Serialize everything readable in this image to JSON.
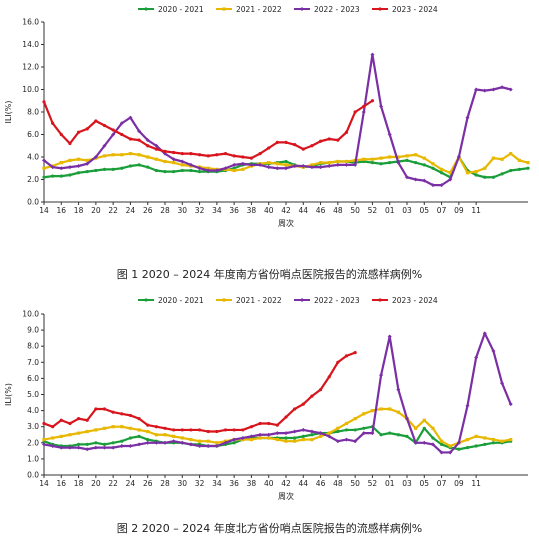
{
  "charts": [
    {
      "caption": "图 1   2020 – 2024 年度南方省份哨点医院报告的流感样病例%"
    },
    {
      "caption": "图 2   2020 – 2024 年度北方省份哨点医院报告的流感样病例%"
    }
  ],
  "chart_data": [
    {
      "type": "line",
      "xlabel": "周次",
      "ylabel": "ILI(%)",
      "ylim": [
        0,
        16
      ],
      "yticks": [
        "0.0",
        "2.0",
        "4.0",
        "6.0",
        "8.0",
        "10.0",
        "12.0",
        "14.0",
        "16.0"
      ],
      "xticks": [
        "14",
        "16",
        "18",
        "20",
        "22",
        "24",
        "26",
        "28",
        "30",
        "32",
        "34",
        "36",
        "38",
        "40",
        "42",
        "44",
        "46",
        "48",
        "50",
        "52",
        "01",
        "03",
        "05",
        "07",
        "09",
        "11"
      ],
      "legend_position": "top",
      "grid": false,
      "series": [
        {
          "name": "2020 - 2021",
          "color": "#1a9e3a",
          "marker": "circle",
          "values": [
            2.2,
            2.3,
            2.3,
            2.4,
            2.6,
            2.7,
            2.8,
            2.9,
            2.9,
            3.0,
            3.2,
            3.3,
            3.1,
            2.8,
            2.7,
            2.7,
            2.8,
            2.8,
            2.7,
            2.7,
            2.7,
            2.8,
            3.0,
            3.3,
            3.4,
            3.4,
            3.4,
            3.5,
            3.6,
            3.3,
            3.1,
            3.2,
            3.4,
            3.5,
            3.6,
            3.6,
            3.5,
            3.6,
            3.5,
            3.4,
            3.5,
            3.6,
            3.7,
            3.5,
            3.3,
            3.0,
            2.6,
            2.2,
            4.0,
            2.8,
            2.4,
            2.2,
            2.2,
            2.5,
            2.8,
            2.9,
            3.0
          ]
        },
        {
          "name": "2021 - 2022",
          "color": "#e8b800",
          "marker": "square",
          "values": [
            3.0,
            3.2,
            3.5,
            3.7,
            3.8,
            3.7,
            3.9,
            4.1,
            4.2,
            4.2,
            4.3,
            4.2,
            4.0,
            3.8,
            3.6,
            3.5,
            3.3,
            3.2,
            3.1,
            3.0,
            2.9,
            2.9,
            2.8,
            2.9,
            3.2,
            3.4,
            3.5,
            3.4,
            3.3,
            3.2,
            3.1,
            3.3,
            3.5,
            3.5,
            3.6,
            3.6,
            3.7,
            3.8,
            3.8,
            3.9,
            4.0,
            4.0,
            4.1,
            4.2,
            3.9,
            3.4,
            2.9,
            2.6,
            4.0,
            2.6,
            2.7,
            3.0,
            3.9,
            3.8,
            4.3,
            3.7,
            3.5
          ]
        },
        {
          "name": "2022 - 2023",
          "color": "#7b2fa5",
          "marker": "diamond",
          "values": [
            3.7,
            3.1,
            3.0,
            3.1,
            3.2,
            3.4,
            4.0,
            5.0,
            6.0,
            7.0,
            7.5,
            6.3,
            5.5,
            5.0,
            4.3,
            3.8,
            3.6,
            3.3,
            3.0,
            2.8,
            2.8,
            3.0,
            3.3,
            3.4,
            3.3,
            3.3,
            3.1,
            3.0,
            3.0,
            3.2,
            3.2,
            3.1,
            3.1,
            3.2,
            3.3,
            3.3,
            3.3,
            8.0,
            13.1,
            8.5,
            6.0,
            3.5,
            2.2,
            2.0,
            1.9,
            1.5,
            1.5,
            2.0,
            4.0,
            7.5,
            10.0,
            9.9,
            10.0,
            10.2,
            10.0
          ]
        },
        {
          "name": "2023 - 2024",
          "color": "#d8141c",
          "marker": "circle",
          "values": [
            8.9,
            7.0,
            6.0,
            5.2,
            6.2,
            6.5,
            7.2,
            6.8,
            6.4,
            6.0,
            5.6,
            5.5,
            5.0,
            4.7,
            4.5,
            4.4,
            4.3,
            4.3,
            4.2,
            4.1,
            4.2,
            4.3,
            4.1,
            4.0,
            3.9,
            4.3,
            4.8,
            5.3,
            5.3,
            5.1,
            4.7,
            5.0,
            5.4,
            5.6,
            5.5,
            6.2,
            8.0,
            8.5,
            9.0
          ]
        }
      ]
    },
    {
      "type": "line",
      "xlabel": "周次",
      "ylabel": "ILI(%)",
      "ylim": [
        0,
        10
      ],
      "yticks": [
        "0.0",
        "1.0",
        "2.0",
        "3.0",
        "4.0",
        "5.0",
        "6.0",
        "7.0",
        "8.0",
        "9.0",
        "10.0"
      ],
      "xticks": [
        "14",
        "16",
        "18",
        "20",
        "22",
        "24",
        "26",
        "28",
        "30",
        "32",
        "34",
        "36",
        "38",
        "40",
        "42",
        "44",
        "46",
        "48",
        "50",
        "52",
        "01",
        "03",
        "05",
        "07",
        "09",
        "11"
      ],
      "legend_position": "top",
      "grid": false,
      "series": [
        {
          "name": "2020 - 2021",
          "color": "#1a9e3a",
          "marker": "circle",
          "values": [
            2.1,
            1.9,
            1.8,
            1.8,
            1.9,
            1.9,
            2.0,
            1.9,
            2.0,
            2.1,
            2.3,
            2.4,
            2.2,
            2.1,
            2.0,
            2.0,
            2.0,
            1.9,
            1.9,
            1.8,
            1.8,
            1.9,
            2.0,
            2.2,
            2.3,
            2.3,
            2.3,
            2.3,
            2.3,
            2.3,
            2.4,
            2.5,
            2.6,
            2.6,
            2.7,
            2.8,
            2.8,
            2.9,
            3.0,
            2.5,
            2.6,
            2.5,
            2.4,
            2.0,
            2.9,
            2.3,
            1.9,
            1.7,
            1.6,
            1.7,
            1.8,
            1.9,
            2.0,
            2.0,
            2.1
          ]
        },
        {
          "name": "2021 - 2022",
          "color": "#e8b800",
          "marker": "square",
          "values": [
            2.2,
            2.3,
            2.4,
            2.5,
            2.6,
            2.7,
            2.8,
            2.9,
            3.0,
            3.0,
            2.9,
            2.8,
            2.7,
            2.5,
            2.5,
            2.4,
            2.3,
            2.2,
            2.1,
            2.1,
            2.0,
            2.1,
            2.2,
            2.2,
            2.2,
            2.3,
            2.3,
            2.2,
            2.1,
            2.1,
            2.2,
            2.2,
            2.4,
            2.6,
            2.9,
            3.2,
            3.5,
            3.8,
            4.0,
            4.1,
            4.1,
            3.9,
            3.5,
            2.9,
            3.4,
            2.9,
            2.1,
            1.8,
            2.0,
            2.2,
            2.4,
            2.3,
            2.2,
            2.1,
            2.2
          ]
        },
        {
          "name": "2022 - 2023",
          "color": "#7b2fa5",
          "marker": "diamond",
          "values": [
            1.9,
            1.8,
            1.7,
            1.7,
            1.7,
            1.6,
            1.7,
            1.7,
            1.7,
            1.8,
            1.8,
            1.9,
            2.0,
            2.0,
            2.0,
            2.1,
            2.0,
            1.9,
            1.8,
            1.8,
            1.8,
            2.0,
            2.2,
            2.3,
            2.4,
            2.5,
            2.5,
            2.6,
            2.6,
            2.7,
            2.8,
            2.7,
            2.6,
            2.4,
            2.1,
            2.2,
            2.1,
            2.6,
            2.6,
            6.2,
            8.6,
            5.3,
            3.5,
            2.0,
            2.0,
            1.9,
            1.4,
            1.4,
            2.0,
            4.3,
            7.3,
            8.8,
            7.7,
            5.7,
            4.4
          ]
        },
        {
          "name": "2023 - 2024",
          "color": "#d8141c",
          "marker": "circle",
          "values": [
            3.2,
            3.0,
            3.4,
            3.2,
            3.5,
            3.4,
            4.1,
            4.1,
            3.9,
            3.8,
            3.7,
            3.5,
            3.1,
            3.0,
            2.9,
            2.8,
            2.8,
            2.8,
            2.8,
            2.7,
            2.7,
            2.8,
            2.8,
            2.8,
            3.0,
            3.2,
            3.2,
            3.1,
            3.6,
            4.1,
            4.4,
            4.9,
            5.3,
            6.1,
            7.0,
            7.4,
            7.6
          ]
        }
      ]
    }
  ]
}
